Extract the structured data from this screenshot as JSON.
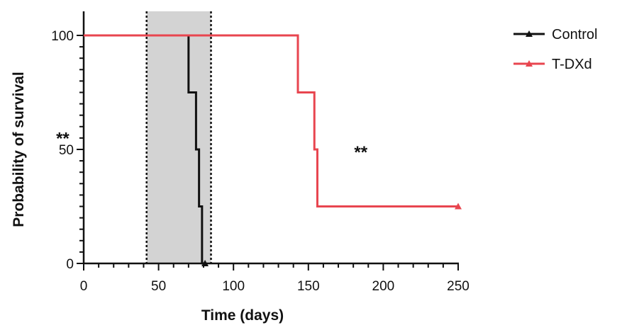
{
  "chart_data": {
    "type": "line",
    "title": "",
    "xlabel": "Time (days)",
    "ylabel": "Probability of survival",
    "xlim": [
      0,
      250
    ],
    "ylim": [
      0,
      100
    ],
    "x_ticks": [
      0,
      50,
      100,
      150,
      200,
      250
    ],
    "y_ticks": [
      0,
      50,
      100
    ],
    "x_tick_labels": [
      "0",
      "50",
      "100",
      "150",
      "200",
      "250"
    ],
    "y_tick_labels": [
      "0",
      "50",
      "100"
    ],
    "grid": false,
    "legend_position": "top-right outside",
    "treatment_window": {
      "start": 42,
      "end": 85,
      "fill": "#d3d3d3",
      "border_style": "dotted"
    },
    "series": [
      {
        "name": "Control",
        "color": "#111111",
        "marker": "triangle",
        "step": true,
        "x": [
          0,
          70,
          70,
          75,
          75,
          77,
          77,
          79,
          79,
          81
        ],
        "y": [
          100,
          100,
          75,
          75,
          50,
          50,
          25,
          25,
          0,
          0
        ]
      },
      {
        "name": "T-DXd",
        "color": "#e8454f",
        "marker": "triangle",
        "step": true,
        "x": [
          0,
          143,
          143,
          154,
          154,
          156,
          156,
          250
        ],
        "y": [
          100,
          100,
          75,
          75,
          50,
          50,
          25,
          25
        ]
      }
    ],
    "annotations": [
      {
        "text": "**",
        "x": 185,
        "y": 50
      },
      {
        "text": "**",
        "x": -14,
        "y": 56
      }
    ]
  }
}
